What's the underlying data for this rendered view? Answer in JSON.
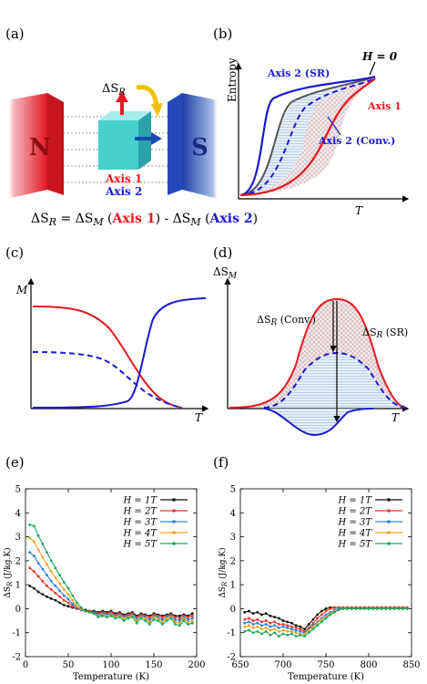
{
  "panel_labels": [
    "(a)",
    "(b)",
    "(c)",
    "(d)",
    "(e)",
    "(f)"
  ],
  "panel_a": {
    "magnet_left": "N",
    "magnet_right": "S",
    "delta_sr_label": "ΔS",
    "delta_sr_sub": "R",
    "axis1": "Axis 1",
    "axis2": "Axis 2",
    "formula": {
      "part1": "ΔS",
      "sub1": "R",
      "part2": " = ΔS",
      "sub2": "M",
      "part3": " (",
      "axis1": "Axis 1",
      "part4": ") - ΔS",
      "sub3": "M",
      "part5": " (",
      "axis2": "Axis 2",
      "part6": ")"
    }
  },
  "panel_b": {
    "ylabel": "Entropy",
    "xlabel": "T",
    "label_h0": "H = 0",
    "label_axis2_sr": "Axis 2 (SR)",
    "label_axis1": "Axis 1",
    "label_axis2_conv": "Axis 2 (Conv.)"
  },
  "panel_c": {
    "ylabel": "M",
    "xlabel": "T"
  },
  "panel_d": {
    "ylabel": "ΔS",
    "ylabel_sub": "M",
    "xlabel": "T",
    "label_conv": "ΔS",
    "label_conv_sub": "R",
    "label_conv_suffix": " (Conv.)",
    "label_sr": "ΔS",
    "label_sr_sub": "R",
    "label_sr_suffix": " (SR)"
  },
  "colors": {
    "axis1": "#e8181e",
    "axis2": "#1a1ad0",
    "h0": "#555555",
    "h1": "#111111",
    "h2": "#e8352a",
    "h3": "#2a7fd4",
    "h4": "#f0a020",
    "h5": "#1aa860"
  },
  "chart_data": [
    {
      "panel": "(e)",
      "type": "line",
      "xlabel": "Temperature (K)",
      "ylabel": "ΔS_R (J/kg.K)",
      "xlim": [
        0,
        200
      ],
      "ylim": [
        -2,
        5
      ],
      "xticks": [
        0,
        50,
        100,
        150,
        200
      ],
      "yticks": [
        -2,
        -1,
        0,
        1,
        2,
        3,
        4,
        5
      ],
      "legend_position": "top-right",
      "x": [
        5,
        10,
        15,
        20,
        25,
        30,
        35,
        40,
        45,
        50,
        55,
        60,
        65,
        70,
        75,
        80,
        85,
        90,
        95,
        100,
        105,
        110,
        115,
        120,
        125,
        130,
        135,
        140,
        145,
        150,
        155,
        160,
        165,
        170,
        175,
        180,
        185,
        190,
        195
      ],
      "series": [
        {
          "name": "H = 1T",
          "color": "#111111",
          "values": [
            0.95,
            0.85,
            0.7,
            0.6,
            0.5,
            0.42,
            0.35,
            0.25,
            0.15,
            0.1,
            0.05,
            0.0,
            -0.05,
            -0.05,
            -0.1,
            -0.1,
            -0.15,
            -0.1,
            -0.15,
            -0.1,
            -0.2,
            -0.15,
            -0.25,
            -0.2,
            -0.15,
            -0.3,
            -0.2,
            -0.25,
            -0.3,
            -0.2,
            -0.25,
            -0.3,
            -0.25,
            -0.2,
            -0.3,
            -0.3,
            -0.25,
            -0.3,
            -0.2
          ]
        },
        {
          "name": "H = 2T",
          "color": "#e8352a",
          "values": [
            1.7,
            1.55,
            1.35,
            1.15,
            0.95,
            0.8,
            0.65,
            0.5,
            0.35,
            0.25,
            0.1,
            0.0,
            -0.05,
            -0.1,
            -0.1,
            -0.15,
            -0.2,
            -0.15,
            -0.2,
            -0.15,
            -0.25,
            -0.2,
            -0.3,
            -0.25,
            -0.2,
            -0.35,
            -0.25,
            -0.3,
            -0.35,
            -0.25,
            -0.3,
            -0.35,
            -0.3,
            -0.25,
            -0.35,
            -0.4,
            -0.3,
            -0.35,
            -0.3
          ]
        },
        {
          "name": "H = 3T",
          "color": "#2a7fd4",
          "values": [
            2.35,
            2.2,
            1.9,
            1.65,
            1.4,
            1.15,
            0.95,
            0.75,
            0.55,
            0.4,
            0.2,
            0.05,
            -0.05,
            -0.1,
            -0.15,
            -0.15,
            -0.25,
            -0.2,
            -0.25,
            -0.2,
            -0.3,
            -0.25,
            -0.35,
            -0.3,
            -0.25,
            -0.4,
            -0.3,
            -0.35,
            -0.45,
            -0.3,
            -0.35,
            -0.45,
            -0.35,
            -0.3,
            -0.45,
            -0.5,
            -0.35,
            -0.45,
            -0.4
          ]
        },
        {
          "name": "H = 4T",
          "color": "#f0a020",
          "values": [
            2.95,
            2.8,
            2.45,
            2.15,
            1.85,
            1.55,
            1.3,
            1.05,
            0.8,
            0.6,
            0.35,
            0.1,
            0.0,
            -0.1,
            -0.15,
            -0.2,
            -0.3,
            -0.25,
            -0.3,
            -0.25,
            -0.35,
            -0.3,
            -0.4,
            -0.35,
            -0.3,
            -0.5,
            -0.35,
            -0.4,
            -0.55,
            -0.35,
            -0.4,
            -0.55,
            -0.4,
            -0.35,
            -0.55,
            -0.6,
            -0.4,
            -0.55,
            -0.5
          ]
        },
        {
          "name": "H = 5T",
          "color": "#1aa860",
          "values": [
            3.5,
            3.45,
            3.05,
            2.7,
            2.35,
            2.0,
            1.7,
            1.4,
            1.1,
            0.85,
            0.55,
            0.25,
            0.05,
            -0.1,
            -0.15,
            -0.2,
            -0.35,
            -0.3,
            -0.35,
            -0.3,
            -0.4,
            -0.35,
            -0.5,
            -0.4,
            -0.35,
            -0.6,
            -0.4,
            -0.5,
            -0.65,
            -0.45,
            -0.5,
            -0.65,
            -0.5,
            -0.4,
            -0.65,
            -0.7,
            -0.5,
            -0.65,
            -0.6
          ]
        }
      ]
    },
    {
      "panel": "(f)",
      "type": "line",
      "xlabel": "Temperature (K)",
      "ylabel": "ΔS_R (J/kg.K)",
      "xlim": [
        650,
        850
      ],
      "ylim": [
        -2,
        5
      ],
      "xticks": [
        650,
        700,
        750,
        800,
        850
      ],
      "yticks": [
        -2,
        -1,
        0,
        1,
        2,
        3,
        4,
        5
      ],
      "legend_position": "top-right",
      "x": [
        655,
        660,
        665,
        670,
        675,
        680,
        685,
        690,
        695,
        700,
        705,
        710,
        715,
        720,
        725,
        730,
        735,
        740,
        745,
        750,
        755,
        760,
        765,
        770,
        775,
        780,
        785,
        790,
        795,
        800,
        805,
        810,
        815,
        820,
        825,
        830,
        835,
        840,
        845
      ],
      "series": [
        {
          "name": "H = 1T",
          "color": "#111111",
          "values": [
            -0.15,
            -0.1,
            -0.2,
            -0.15,
            -0.25,
            -0.2,
            -0.3,
            -0.35,
            -0.4,
            -0.5,
            -0.55,
            -0.6,
            -0.7,
            -0.75,
            -0.85,
            -0.65,
            -0.45,
            -0.25,
            -0.1,
            0.0,
            0.05,
            0.05,
            0.05,
            0.05,
            0.05,
            0.05,
            0.05,
            0.05,
            0.05,
            0.05,
            0.05,
            0.05,
            0.05,
            0.05,
            0.05,
            0.05,
            0.05,
            0.05,
            0.05
          ]
        },
        {
          "name": "H = 2T",
          "color": "#e8352a",
          "values": [
            -0.45,
            -0.4,
            -0.5,
            -0.45,
            -0.55,
            -0.5,
            -0.6,
            -0.55,
            -0.65,
            -0.65,
            -0.7,
            -0.75,
            -0.8,
            -0.85,
            -0.95,
            -0.8,
            -0.6,
            -0.4,
            -0.25,
            -0.1,
            0.0,
            0.05,
            0.05,
            0.05,
            0.05,
            0.05,
            0.05,
            0.05,
            0.05,
            0.05,
            0.05,
            0.05,
            0.05,
            0.05,
            0.05,
            0.05,
            0.05,
            0.05,
            0.05
          ]
        },
        {
          "name": "H = 3T",
          "color": "#2a7fd4",
          "values": [
            -0.6,
            -0.55,
            -0.65,
            -0.6,
            -0.7,
            -0.65,
            -0.75,
            -0.7,
            -0.8,
            -0.75,
            -0.8,
            -0.85,
            -0.9,
            -0.95,
            -1.0,
            -0.85,
            -0.7,
            -0.55,
            -0.4,
            -0.25,
            -0.15,
            -0.05,
            0.0,
            0.0,
            0.0,
            0.0,
            0.0,
            0.0,
            0.0,
            0.0,
            0.0,
            0.0,
            0.0,
            0.0,
            0.0,
            0.0,
            0.0,
            0.0,
            0.0
          ]
        },
        {
          "name": "H = 4T",
          "color": "#f0a020",
          "values": [
            -0.75,
            -0.7,
            -0.8,
            -0.75,
            -0.85,
            -0.8,
            -0.9,
            -0.85,
            -0.95,
            -0.9,
            -0.95,
            -0.95,
            -1.0,
            -1.05,
            -1.05,
            -0.9,
            -0.75,
            -0.6,
            -0.45,
            -0.35,
            -0.2,
            -0.1,
            -0.05,
            0.0,
            0.0,
            0.0,
            0.0,
            0.0,
            0.0,
            0.0,
            0.0,
            0.0,
            0.0,
            0.0,
            0.0,
            0.0,
            0.0,
            0.0,
            0.0
          ]
        },
        {
          "name": "H = 5T",
          "color": "#1aa860",
          "values": [
            -0.95,
            -0.9,
            -1.0,
            -0.95,
            -1.05,
            -0.95,
            -1.1,
            -1.0,
            -1.15,
            -1.05,
            -1.1,
            -1.05,
            -1.15,
            -1.1,
            -1.15,
            -1.0,
            -0.85,
            -0.7,
            -0.55,
            -0.4,
            -0.25,
            -0.15,
            -0.05,
            0.0,
            0.0,
            0.0,
            0.0,
            0.0,
            0.0,
            0.0,
            0.0,
            0.0,
            0.0,
            0.0,
            0.0,
            0.0,
            0.0,
            0.0,
            0.0
          ]
        }
      ]
    }
  ]
}
